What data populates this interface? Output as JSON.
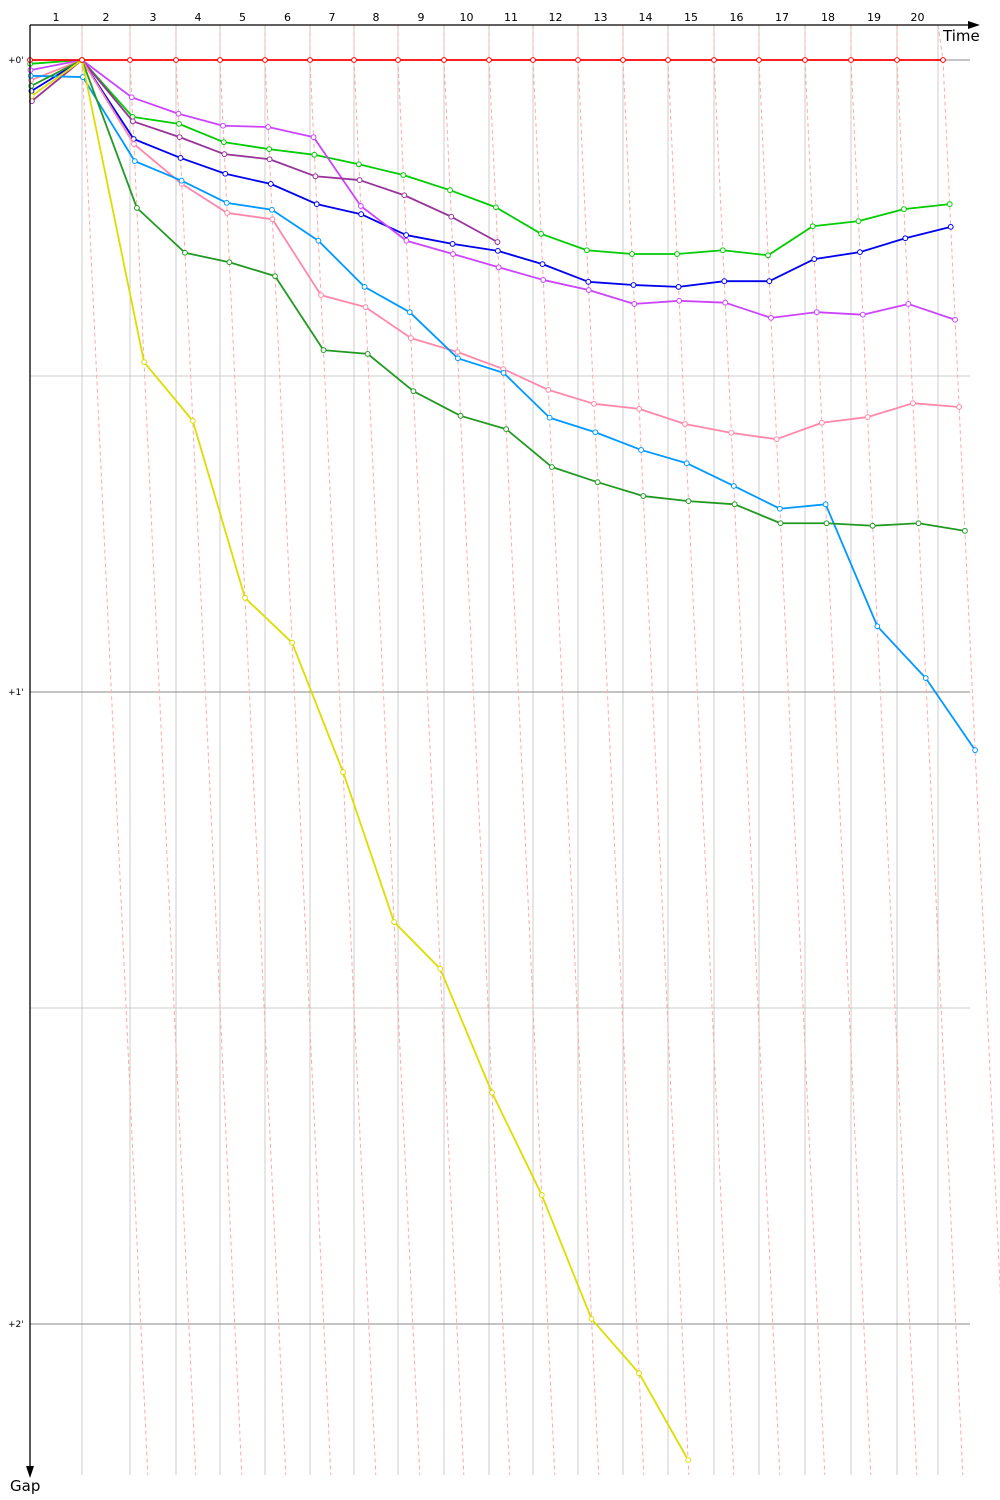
{
  "chart_data": {
    "type": "line",
    "title": "",
    "xlabel": "Time",
    "ylabel": "Gap",
    "x_tick_labels": [
      "1",
      "2",
      "3",
      "4",
      "5",
      "6",
      "7",
      "8",
      "9",
      "10",
      "11",
      "12",
      "13",
      "14",
      "15",
      "16",
      "17",
      "18",
      "19",
      "20"
    ],
    "y_tick_labels": [
      "+0'",
      "+1'",
      "+2'"
    ],
    "y_unit": "minutes",
    "ylim": [
      0,
      2.23
    ],
    "grid": true,
    "laps": [
      0,
      1,
      2,
      3,
      4,
      5,
      6,
      7,
      8,
      9,
      10,
      11,
      12,
      13,
      14,
      15,
      16,
      17,
      18,
      19,
      20
    ],
    "series": [
      {
        "color": "#ff0000",
        "values": [
          0,
          0,
          0,
          0,
          0,
          0,
          0,
          0,
          0,
          0,
          0,
          0,
          0,
          0,
          0,
          0,
          0,
          0,
          0,
          0,
          0
        ]
      },
      {
        "color": "#00cc00",
        "values": [
          0.006,
          0,
          0.09,
          0.101,
          0.13,
          0.141,
          0.15,
          0.165,
          0.182,
          0.206,
          0.233,
          0.275,
          0.301,
          0.307,
          0.307,
          0.301,
          0.309,
          0.263,
          0.255,
          0.236,
          0.228
        ]
      },
      {
        "color": "#0000ee",
        "values": [
          0.049,
          0,
          0.125,
          0.155,
          0.18,
          0.196,
          0.228,
          0.244,
          0.277,
          0.291,
          0.302,
          0.323,
          0.351,
          0.356,
          0.359,
          0.35,
          0.35,
          0.315,
          0.304,
          0.282,
          0.264
        ]
      },
      {
        "color": "#cc44ff",
        "values": [
          0.016,
          0,
          0.059,
          0.085,
          0.104,
          0.106,
          0.122,
          0.231,
          0.286,
          0.307,
          0.328,
          0.348,
          0.364,
          0.386,
          0.381,
          0.384,
          0.408,
          0.399,
          0.403,
          0.386,
          0.411
        ]
      },
      {
        "color": "#993399",
        "values": [
          0.065,
          0,
          0.097,
          0.122,
          0.149,
          0.157,
          0.184,
          0.19,
          0.214,
          0.248,
          0.288
        ]
      },
      {
        "color": "#ff88aa",
        "values": [
          0.032,
          0,
          0.133,
          0.196,
          0.242,
          0.252,
          0.372,
          0.391,
          0.44,
          0.462,
          0.489,
          0.522,
          0.544,
          0.552,
          0.576,
          0.59,
          0.6,
          0.574,
          0.565,
          0.543,
          0.549
        ]
      },
      {
        "color": "#0099ff",
        "values": [
          0.025,
          0.027,
          0.16,
          0.191,
          0.226,
          0.237,
          0.286,
          0.359,
          0.399,
          0.472,
          0.495,
          0.566,
          0.589,
          0.617,
          0.638,
          0.674,
          0.71,
          0.703,
          0.896,
          0.978,
          1.092
        ]
      },
      {
        "color": "#229922",
        "values": [
          0.041,
          0,
          0.234,
          0.305,
          0.32,
          0.342,
          0.459,
          0.465,
          0.524,
          0.563,
          0.584,
          0.644,
          0.668,
          0.69,
          0.698,
          0.703,
          0.733,
          0.733,
          0.737,
          0.733,
          0.745
        ]
      },
      {
        "color": "#dddd00",
        "values": [
          0.057,
          0,
          0.478,
          0.571,
          0.851,
          0.922,
          1.127,
          1.364,
          1.438,
          1.634,
          1.796,
          1.992,
          2.078,
          2.215
        ]
      }
    ]
  }
}
